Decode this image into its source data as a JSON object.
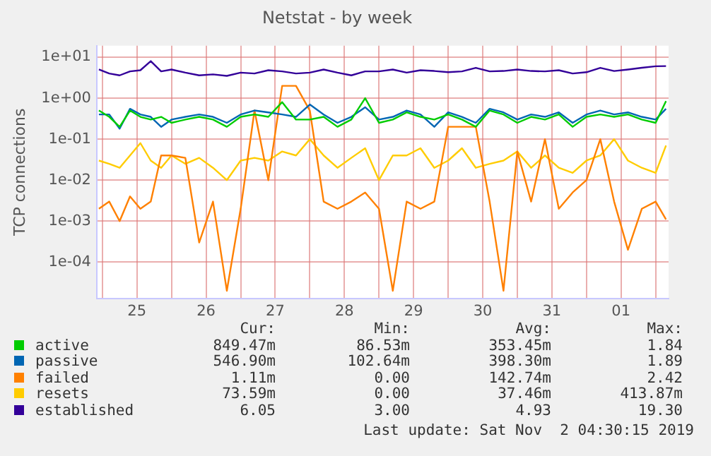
{
  "chart_data": {
    "type": "line",
    "title": "Netstat - by week",
    "ylabel": "TCP connections",
    "x": [
      "2019-10-24T22:48",
      "2019-10-25T02:24",
      "2019-10-25T06:00",
      "2019-10-25T09:36",
      "2019-10-25T13:12",
      "2019-10-25T16:48",
      "2019-10-25T20:24",
      "2019-10-26T00:00",
      "2019-10-26T04:48",
      "2019-10-26T09:36",
      "2019-10-26T14:24",
      "2019-10-26T19:12",
      "2019-10-27T00:00",
      "2019-10-27T04:48",
      "2019-10-27T09:36",
      "2019-10-27T14:24",
      "2019-10-27T19:12",
      "2019-10-28T00:00",
      "2019-10-28T04:48",
      "2019-10-28T09:36",
      "2019-10-28T14:24",
      "2019-10-28T19:12",
      "2019-10-29T00:00",
      "2019-10-29T04:48",
      "2019-10-29T09:36",
      "2019-10-29T14:24",
      "2019-10-29T19:12",
      "2019-10-30T00:00",
      "2019-10-30T04:48",
      "2019-10-30T09:36",
      "2019-10-30T14:24",
      "2019-10-30T19:12",
      "2019-10-31T00:00",
      "2019-10-31T04:48",
      "2019-10-31T09:36",
      "2019-10-31T14:24",
      "2019-10-31T19:12",
      "2019-11-01T00:00",
      "2019-11-01T04:48",
      "2019-11-01T09:36",
      "2019-11-01T14:24",
      "2019-11-01T19:12",
      "2019-11-02T00:00",
      "2019-11-02T03:36"
    ],
    "series": [
      {
        "name": "active",
        "color": "#00cc00",
        "values": [
          0.5,
          0.35,
          0.2,
          0.5,
          0.35,
          0.3,
          0.35,
          0.25,
          0.3,
          0.35,
          0.3,
          0.2,
          0.35,
          0.4,
          0.35,
          0.8,
          0.3,
          0.3,
          0.35,
          0.2,
          0.3,
          1.0,
          0.25,
          0.3,
          0.45,
          0.35,
          0.3,
          0.4,
          0.3,
          0.2,
          0.5,
          0.4,
          0.25,
          0.35,
          0.3,
          0.4,
          0.2,
          0.35,
          0.4,
          0.35,
          0.4,
          0.3,
          0.25,
          0.85
        ]
      },
      {
        "name": "passive",
        "color": "#0066b3",
        "values": [
          0.4,
          0.4,
          0.18,
          0.55,
          0.4,
          0.35,
          0.2,
          0.3,
          0.35,
          0.4,
          0.35,
          0.25,
          0.4,
          0.5,
          0.45,
          0.4,
          0.35,
          0.7,
          0.4,
          0.25,
          0.35,
          0.6,
          0.3,
          0.35,
          0.5,
          0.4,
          0.2,
          0.45,
          0.35,
          0.25,
          0.55,
          0.45,
          0.3,
          0.4,
          0.35,
          0.45,
          0.25,
          0.4,
          0.5,
          0.4,
          0.45,
          0.35,
          0.3,
          0.55
        ]
      },
      {
        "name": "failed",
        "color": "#ff8000",
        "values": [
          0.002,
          0.003,
          0.001,
          0.004,
          0.002,
          0.003,
          0.04,
          0.04,
          0.035,
          0.0003,
          0.003,
          2e-05,
          0.002,
          0.5,
          0.01,
          2,
          2,
          0.5,
          0.003,
          0.002,
          0.003,
          0.005,
          0.002,
          2e-05,
          0.003,
          0.002,
          0.003,
          0.2,
          0.2,
          0.2,
          0.003,
          2e-05,
          0.05,
          0.003,
          0.1,
          0.002,
          0.005,
          0.01,
          0.1,
          0.003,
          0.0002,
          0.002,
          0.003,
          0.0011
        ]
      },
      {
        "name": "resets",
        "color": "#ffcc00",
        "values": [
          0.03,
          0.025,
          0.02,
          0.04,
          0.08,
          0.03,
          0.02,
          0.04,
          0.025,
          0.035,
          0.02,
          0.01,
          0.03,
          0.035,
          0.03,
          0.05,
          0.04,
          0.1,
          0.04,
          0.02,
          0.035,
          0.06,
          0.01,
          0.04,
          0.04,
          0.06,
          0.02,
          0.03,
          0.06,
          0.02,
          0.025,
          0.03,
          0.05,
          0.02,
          0.04,
          0.02,
          0.015,
          0.03,
          0.04,
          0.1,
          0.03,
          0.02,
          0.015,
          0.07
        ]
      },
      {
        "name": "established",
        "color": "#330099",
        "values": [
          5,
          4,
          3.6,
          4.5,
          4.8,
          8,
          4.5,
          5,
          4.2,
          3.6,
          3.8,
          3.5,
          4.2,
          4,
          4.8,
          4.5,
          4,
          4.2,
          5,
          4.2,
          3.6,
          4.5,
          4.5,
          5,
          4.2,
          4.8,
          4.6,
          4.3,
          4.5,
          5.5,
          4.5,
          4.6,
          5,
          4.6,
          4.5,
          4.8,
          4,
          4.3,
          5.5,
          4.6,
          5,
          5.5,
          6,
          6.05
        ]
      }
    ],
    "xlim": [
      "2019-10-24T22:05",
      "2019-11-02T04:30"
    ],
    "xticks": [
      {
        "value": "2019-10-25T00:00",
        "label": null
      },
      {
        "value": "2019-10-25T12:00",
        "label": "25"
      },
      {
        "value": "2019-10-26T00:00",
        "label": null
      },
      {
        "value": "2019-10-26T12:00",
        "label": "26"
      },
      {
        "value": "2019-10-27T00:00",
        "label": null
      },
      {
        "value": "2019-10-27T12:00",
        "label": "27"
      },
      {
        "value": "2019-10-28T00:00",
        "label": null
      },
      {
        "value": "2019-10-28T12:00",
        "label": "28"
      },
      {
        "value": "2019-10-29T00:00",
        "label": null
      },
      {
        "value": "2019-10-29T12:00",
        "label": "29"
      },
      {
        "value": "2019-10-30T00:00",
        "label": null
      },
      {
        "value": "2019-10-30T12:00",
        "label": "30"
      },
      {
        "value": "2019-10-31T00:00",
        "label": null
      },
      {
        "value": "2019-10-31T12:00",
        "label": "31"
      },
      {
        "value": "2019-11-01T00:00",
        "label": null
      },
      {
        "value": "2019-11-01T12:00",
        "label": "01"
      },
      {
        "value": "2019-11-02T00:00",
        "label": null
      }
    ],
    "ylim": [
      1.3e-05,
      19
    ],
    "yticks": [
      {
        "value": 0.0001,
        "label": "1e-04"
      },
      {
        "value": 0.001,
        "label": "1e-03"
      },
      {
        "value": 0.01,
        "label": "1e-02"
      },
      {
        "value": 0.1,
        "label": "1e-01"
      },
      {
        "value": 1,
        "label": "1e+00"
      },
      {
        "value": 10,
        "label": "1e+01"
      }
    ],
    "log": "y",
    "grid": true,
    "legend": "bottom",
    "marker": "none",
    "line_style": "solid",
    "annotations": [
      "Cur:",
      "Min:",
      "Avg:",
      "Max:",
      "849.47m",
      "86.53m",
      "353.45m",
      "1.84",
      "546.90m",
      "102.64m",
      "398.30m",
      "1.89",
      "1.11m",
      "0.00",
      "142.74m",
      "2.42",
      "73.59m",
      "0.00",
      "37.46m",
      "413.87m",
      "6.05",
      "3.00",
      "4.93",
      "19.30",
      "Last update: Sat Nov  2 04:30:15 2019"
    ]
  }
}
